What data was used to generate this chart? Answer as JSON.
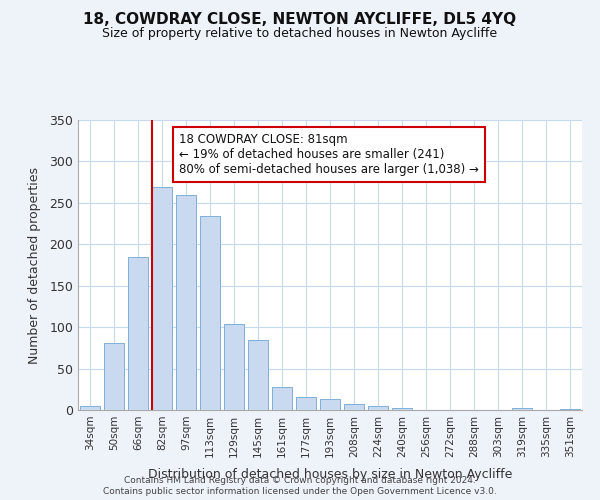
{
  "title": "18, COWDRAY CLOSE, NEWTON AYCLIFFE, DL5 4YQ",
  "subtitle": "Size of property relative to detached houses in Newton Aycliffe",
  "xlabel": "Distribution of detached houses by size in Newton Aycliffe",
  "ylabel": "Number of detached properties",
  "bar_labels": [
    "34sqm",
    "50sqm",
    "66sqm",
    "82sqm",
    "97sqm",
    "113sqm",
    "129sqm",
    "145sqm",
    "161sqm",
    "177sqm",
    "193sqm",
    "208sqm",
    "224sqm",
    "240sqm",
    "256sqm",
    "272sqm",
    "288sqm",
    "303sqm",
    "319sqm",
    "335sqm",
    "351sqm"
  ],
  "bar_values": [
    5,
    81,
    185,
    269,
    260,
    234,
    104,
    85,
    28,
    16,
    13,
    7,
    5,
    2,
    0,
    0,
    0,
    0,
    2,
    0,
    1
  ],
  "bar_color": "#c9d9f0",
  "bar_edge_color": "#7fb0d8",
  "vline_x_index": 3,
  "vline_color": "#cc0000",
  "annotation_text": "18 COWDRAY CLOSE: 81sqm\n← 19% of detached houses are smaller (241)\n80% of semi-detached houses are larger (1,038) →",
  "annotation_box_color": "#ffffff",
  "annotation_box_edge": "#cc0000",
  "ylim": [
    0,
    350
  ],
  "yticks": [
    0,
    50,
    100,
    150,
    200,
    250,
    300,
    350
  ],
  "footer1": "Contains HM Land Registry data © Crown copyright and database right 2024.",
  "footer2": "Contains public sector information licensed under the Open Government Licence v3.0.",
  "bg_color": "#eef2f9",
  "plot_bg_color": "#ffffff",
  "grid_color": "#c8d8ee"
}
